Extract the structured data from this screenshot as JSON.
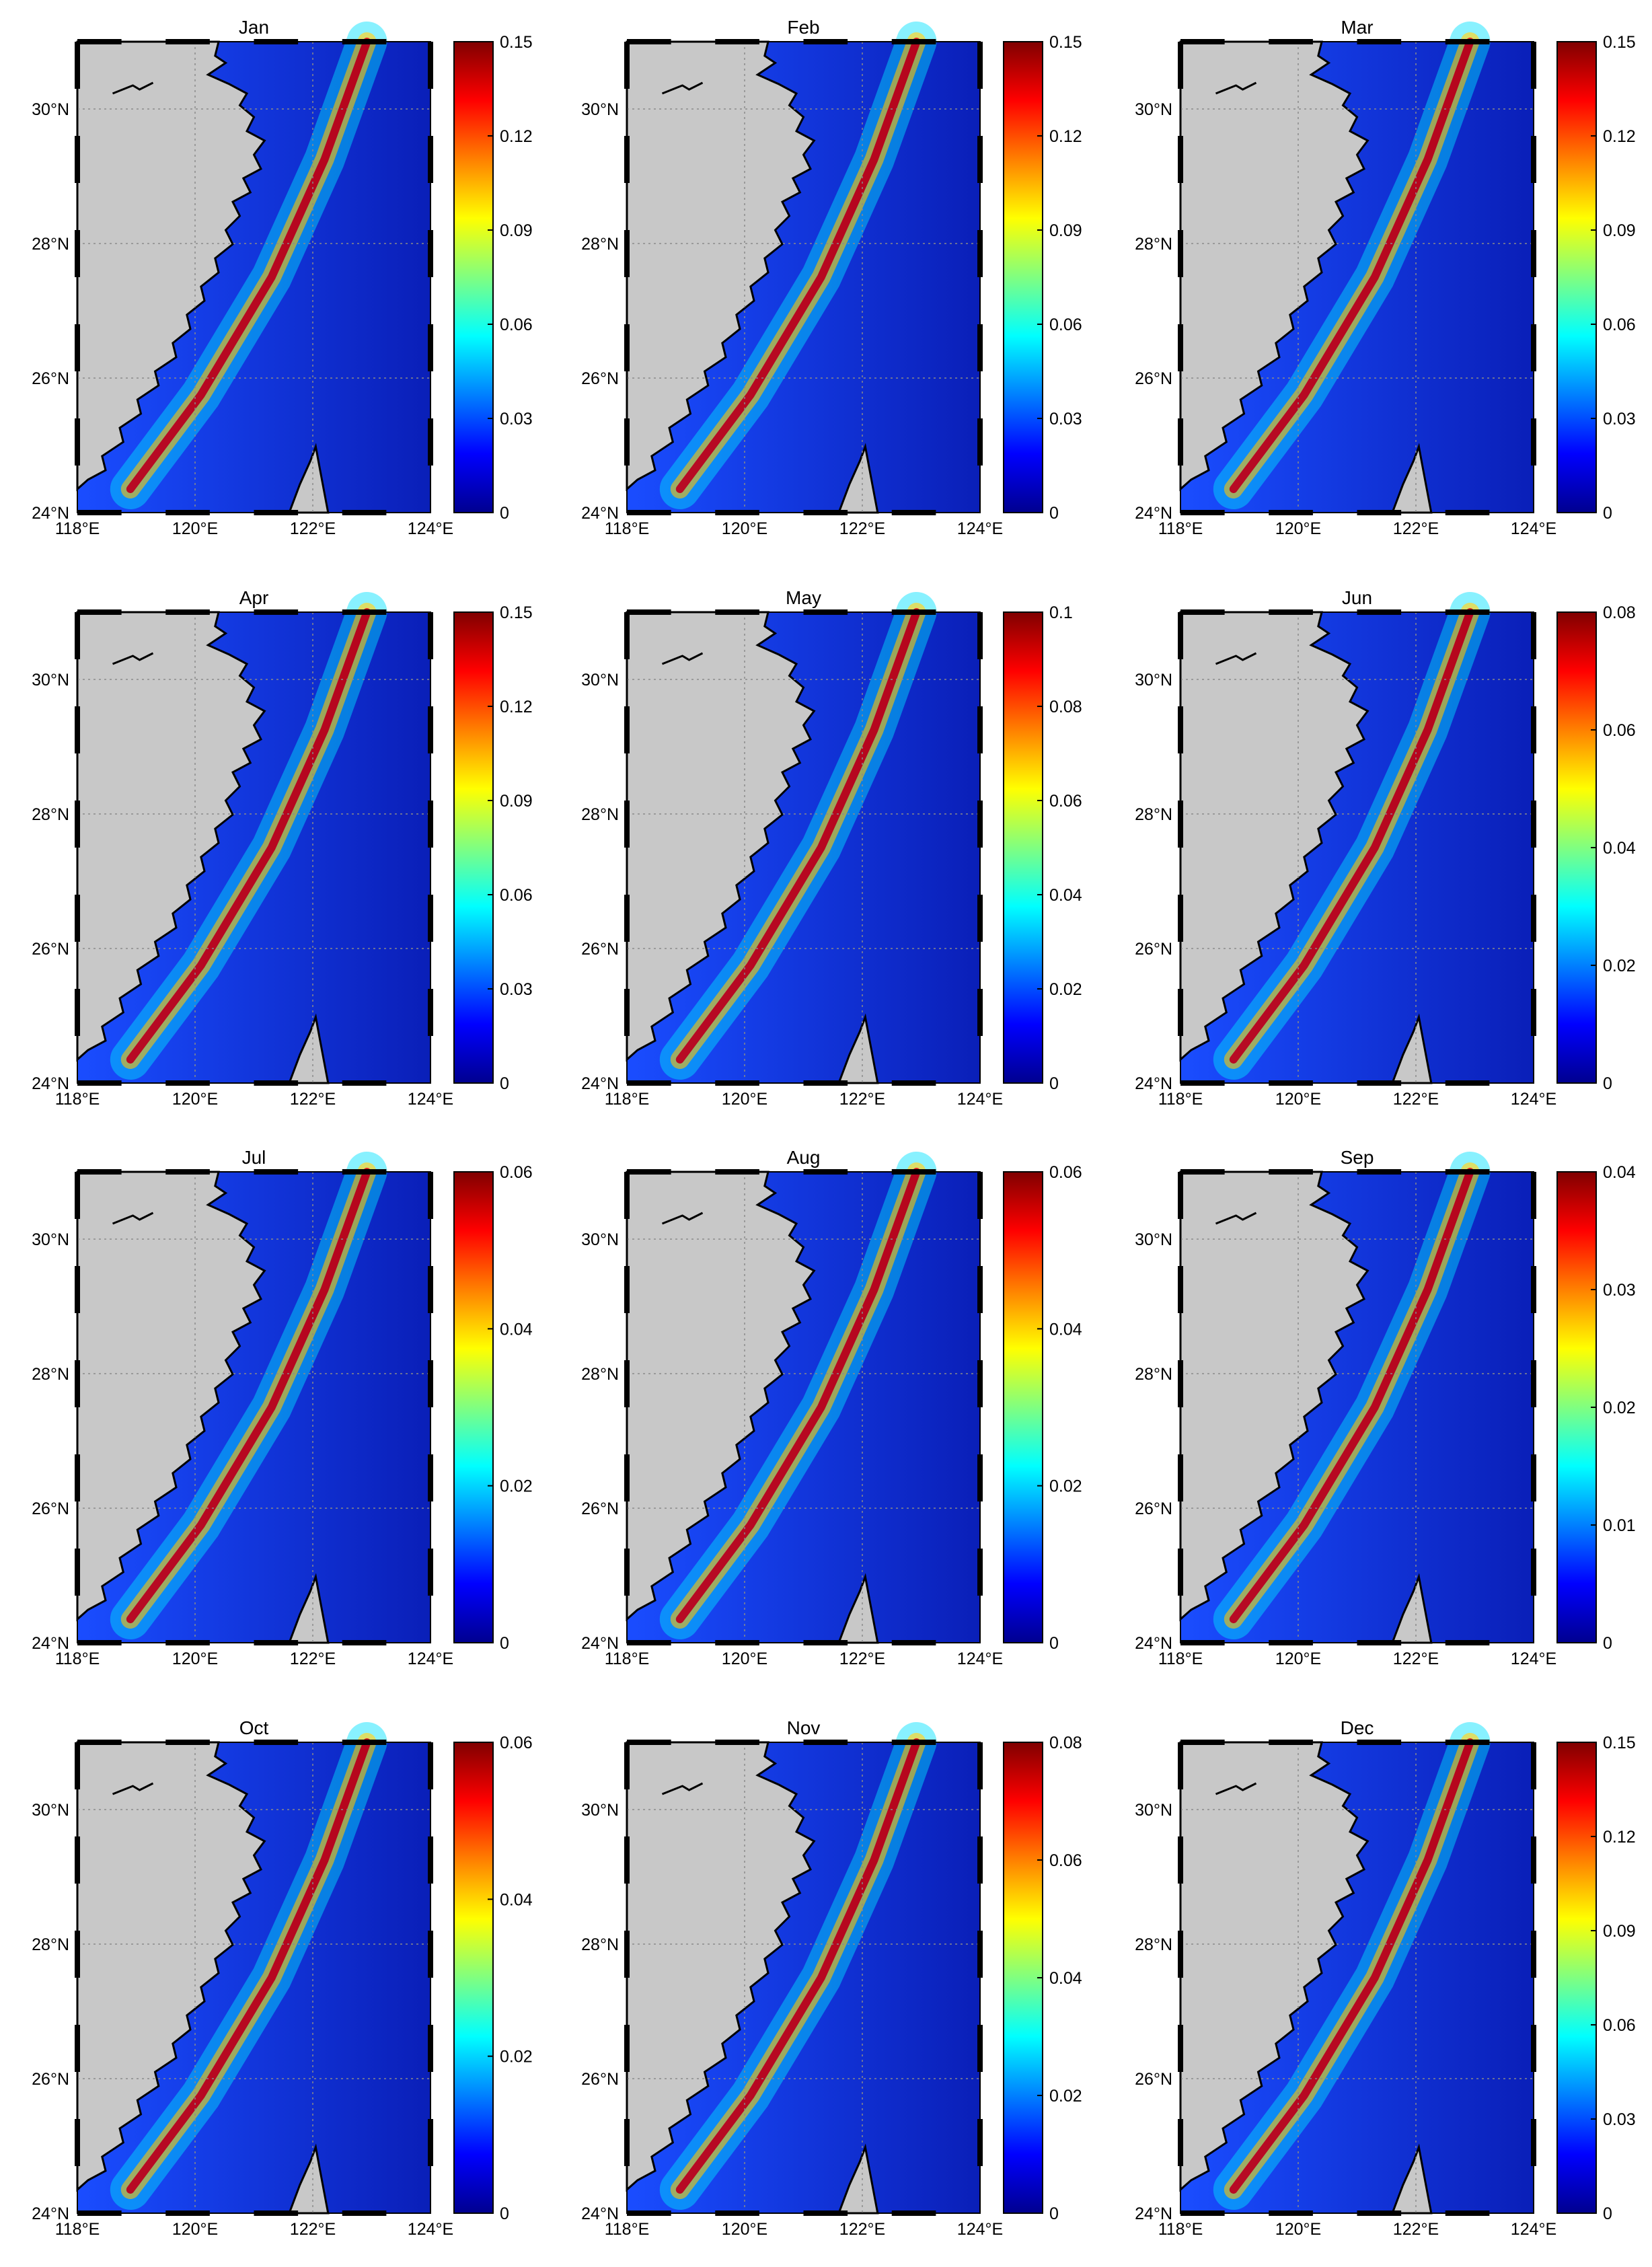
{
  "figure": {
    "colormap": "jet",
    "colors": {
      "land": "#c8c8c8",
      "coast": "#000000",
      "grid": "#8a8a8a",
      "frame": "#000000",
      "jet": [
        "#00008f",
        "#0000ff",
        "#0080ff",
        "#00ffff",
        "#80ff80",
        "#ffff00",
        "#ff8000",
        "#ff0000",
        "#800000"
      ]
    },
    "lat_ticks": [
      "30°N",
      "28°N",
      "26°N",
      "24°N"
    ],
    "lon_ticks": [
      "118°E",
      "120°E",
      "122°E",
      "124°E"
    ],
    "map_extent": {
      "lon": [
        118,
        124
      ],
      "lat": [
        24,
        31
      ]
    }
  },
  "panels": [
    {
      "title": "Jan",
      "cmax": 0.15,
      "cticks": [
        "0.15",
        "0.12",
        "0.09",
        "0.06",
        "0.03",
        "0"
      ]
    },
    {
      "title": "Feb",
      "cmax": 0.15,
      "cticks": [
        "0.15",
        "0.12",
        "0.09",
        "0.06",
        "0.03",
        "0"
      ]
    },
    {
      "title": "Mar",
      "cmax": 0.15,
      "cticks": [
        "0.15",
        "0.12",
        "0.09",
        "0.06",
        "0.03",
        "0"
      ]
    },
    {
      "title": "Apr",
      "cmax": 0.15,
      "cticks": [
        "0.15",
        "0.12",
        "0.09",
        "0.06",
        "0.03",
        "0"
      ]
    },
    {
      "title": "May",
      "cmax": 0.1,
      "cticks": [
        "0.1",
        "0.08",
        "0.06",
        "0.04",
        "0.02",
        "0"
      ]
    },
    {
      "title": "Jun",
      "cmax": 0.08,
      "cticks": [
        "0.08",
        "0.06",
        "0.04",
        "0.02",
        "0"
      ]
    },
    {
      "title": "Jul",
      "cmax": 0.06,
      "cticks": [
        "0.06",
        "0.04",
        "0.02",
        "0"
      ]
    },
    {
      "title": "Aug",
      "cmax": 0.06,
      "cticks": [
        "0.06",
        "0.04",
        "0.02",
        "0"
      ]
    },
    {
      "title": "Sep",
      "cmax": 0.04,
      "cticks": [
        "0.04",
        "0.03",
        "0.02",
        "0.01",
        "0"
      ]
    },
    {
      "title": "Oct",
      "cmax": 0.06,
      "cticks": [
        "0.06",
        "0.04",
        "0.02",
        "0"
      ]
    },
    {
      "title": "Nov",
      "cmax": 0.08,
      "cticks": [
        "0.08",
        "0.06",
        "0.04",
        "0.02",
        "0"
      ]
    },
    {
      "title": "Dec",
      "cmax": 0.15,
      "cticks": [
        "0.15",
        "0.12",
        "0.09",
        "0.06",
        "0.03",
        "0"
      ]
    }
  ]
}
